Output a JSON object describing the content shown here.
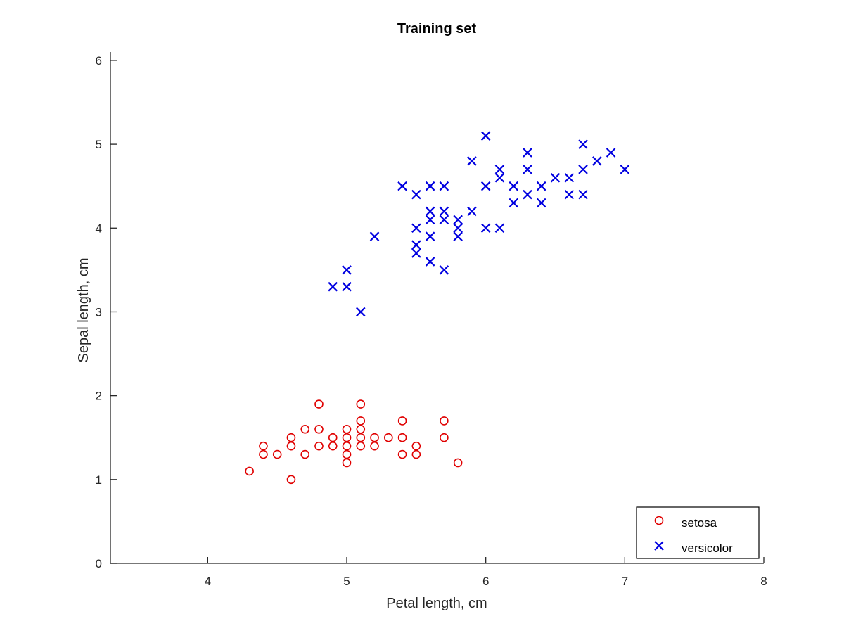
{
  "chart_data": {
    "type": "scatter",
    "title": "Training set",
    "xlabel": "Petal length, cm",
    "ylabel": "Sepal length, cm",
    "xlim": [
      3.3,
      8
    ],
    "ylim": [
      0,
      6.1
    ],
    "xticks": [
      4,
      5,
      6,
      7,
      8
    ],
    "yticks": [
      0,
      1,
      2,
      3,
      4,
      5,
      6
    ],
    "grid": false,
    "legend_position": "bottom-right",
    "series": [
      {
        "name": "setosa",
        "marker": "circle",
        "color": "#e00000",
        "points": [
          [
            4.3,
            1.1
          ],
          [
            4.4,
            1.3
          ],
          [
            4.4,
            1.4
          ],
          [
            4.5,
            1.3
          ],
          [
            4.6,
            1.0
          ],
          [
            4.6,
            1.4
          ],
          [
            4.6,
            1.5
          ],
          [
            4.7,
            1.3
          ],
          [
            4.7,
            1.6
          ],
          [
            4.8,
            1.4
          ],
          [
            4.8,
            1.6
          ],
          [
            4.8,
            1.9
          ],
          [
            4.9,
            1.4
          ],
          [
            4.9,
            1.5
          ],
          [
            5.0,
            1.2
          ],
          [
            5.0,
            1.3
          ],
          [
            5.0,
            1.4
          ],
          [
            5.0,
            1.5
          ],
          [
            5.0,
            1.6
          ],
          [
            5.1,
            1.4
          ],
          [
            5.1,
            1.5
          ],
          [
            5.1,
            1.6
          ],
          [
            5.1,
            1.7
          ],
          [
            5.1,
            1.9
          ],
          [
            5.2,
            1.4
          ],
          [
            5.2,
            1.5
          ],
          [
            5.3,
            1.5
          ],
          [
            5.4,
            1.3
          ],
          [
            5.4,
            1.5
          ],
          [
            5.4,
            1.7
          ],
          [
            5.5,
            1.3
          ],
          [
            5.5,
            1.4
          ],
          [
            5.7,
            1.5
          ],
          [
            5.7,
            1.7
          ],
          [
            5.8,
            1.2
          ]
        ]
      },
      {
        "name": "versicolor",
        "marker": "x",
        "color": "#0000e0",
        "points": [
          [
            4.9,
            3.3
          ],
          [
            5.0,
            3.3
          ],
          [
            5.0,
            3.5
          ],
          [
            5.1,
            3.0
          ],
          [
            5.2,
            3.9
          ],
          [
            5.4,
            4.5
          ],
          [
            5.5,
            3.7
          ],
          [
            5.5,
            3.8
          ],
          [
            5.5,
            4.0
          ],
          [
            5.5,
            4.4
          ],
          [
            5.6,
            3.6
          ],
          [
            5.6,
            3.9
          ],
          [
            5.6,
            4.1
          ],
          [
            5.6,
            4.2
          ],
          [
            5.6,
            4.5
          ],
          [
            5.7,
            3.5
          ],
          [
            5.7,
            4.1
          ],
          [
            5.7,
            4.2
          ],
          [
            5.7,
            4.5
          ],
          [
            5.8,
            3.9
          ],
          [
            5.8,
            4.0
          ],
          [
            5.8,
            4.1
          ],
          [
            5.9,
            4.2
          ],
          [
            5.9,
            4.8
          ],
          [
            6.0,
            4.0
          ],
          [
            6.0,
            4.5
          ],
          [
            6.0,
            5.1
          ],
          [
            6.1,
            4.0
          ],
          [
            6.1,
            4.6
          ],
          [
            6.1,
            4.7
          ],
          [
            6.2,
            4.3
          ],
          [
            6.2,
            4.5
          ],
          [
            6.3,
            4.4
          ],
          [
            6.3,
            4.7
          ],
          [
            6.3,
            4.9
          ],
          [
            6.4,
            4.3
          ],
          [
            6.4,
            4.5
          ],
          [
            6.5,
            4.6
          ],
          [
            6.6,
            4.4
          ],
          [
            6.6,
            4.6
          ],
          [
            6.7,
            4.4
          ],
          [
            6.7,
            4.7
          ],
          [
            6.7,
            5.0
          ],
          [
            6.8,
            4.8
          ],
          [
            6.9,
            4.9
          ],
          [
            7.0,
            4.7
          ]
        ]
      }
    ]
  }
}
